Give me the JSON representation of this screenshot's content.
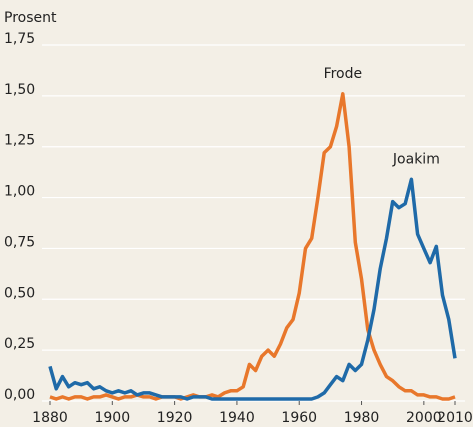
{
  "chart_data": {
    "type": "line",
    "y_label": "Prosent",
    "x": [
      1880,
      1882,
      1884,
      1886,
      1888,
      1890,
      1892,
      1894,
      1896,
      1898,
      1900,
      1902,
      1904,
      1906,
      1908,
      1910,
      1912,
      1914,
      1916,
      1918,
      1920,
      1922,
      1924,
      1926,
      1928,
      1930,
      1932,
      1934,
      1936,
      1938,
      1940,
      1942,
      1944,
      1946,
      1948,
      1950,
      1952,
      1954,
      1956,
      1958,
      1960,
      1962,
      1964,
      1966,
      1968,
      1970,
      1972,
      1974,
      1976,
      1978,
      1980,
      1982,
      1984,
      1986,
      1988,
      1990,
      1992,
      1994,
      1996,
      1998,
      2000,
      2002,
      2004,
      2006,
      2008,
      2010
    ],
    "series": [
      {
        "name": "Frode",
        "color": "#e8772b",
        "values": [
          0.02,
          0.01,
          0.02,
          0.01,
          0.02,
          0.02,
          0.01,
          0.02,
          0.02,
          0.03,
          0.02,
          0.01,
          0.02,
          0.02,
          0.03,
          0.02,
          0.02,
          0.01,
          0.02,
          0.02,
          0.02,
          0.01,
          0.02,
          0.03,
          0.02,
          0.02,
          0.03,
          0.02,
          0.04,
          0.05,
          0.05,
          0.07,
          0.18,
          0.15,
          0.22,
          0.25,
          0.22,
          0.28,
          0.36,
          0.4,
          0.53,
          0.75,
          0.8,
          1.0,
          1.22,
          1.25,
          1.35,
          1.51,
          1.25,
          0.78,
          0.6,
          0.35,
          0.25,
          0.18,
          0.12,
          0.1,
          0.07,
          0.05,
          0.05,
          0.03,
          0.03,
          0.02,
          0.02,
          0.01,
          0.01,
          0.02
        ]
      },
      {
        "name": "Joakim",
        "color": "#1f6aa8",
        "values": [
          0.17,
          0.06,
          0.12,
          0.07,
          0.09,
          0.08,
          0.09,
          0.06,
          0.07,
          0.05,
          0.04,
          0.05,
          0.04,
          0.05,
          0.03,
          0.04,
          0.04,
          0.03,
          0.02,
          0.02,
          0.02,
          0.02,
          0.01,
          0.02,
          0.02,
          0.02,
          0.01,
          0.01,
          0.01,
          0.01,
          0.01,
          0.01,
          0.01,
          0.01,
          0.01,
          0.01,
          0.01,
          0.01,
          0.01,
          0.01,
          0.01,
          0.01,
          0.01,
          0.02,
          0.04,
          0.08,
          0.12,
          0.1,
          0.18,
          0.15,
          0.18,
          0.3,
          0.45,
          0.65,
          0.8,
          0.98,
          0.95,
          0.97,
          1.09,
          0.82,
          0.75,
          0.68,
          0.76,
          0.52,
          0.4,
          0.21
        ]
      }
    ],
    "xlim": [
      1880,
      2010
    ],
    "xticks": [
      1880,
      1900,
      1920,
      1940,
      1960,
      1980,
      2000,
      2010
    ],
    "ylim": [
      0,
      1.75
    ],
    "yticks": [
      {
        "value": 0,
        "label": "0,00"
      },
      {
        "value": 0.25,
        "label": "0,25"
      },
      {
        "value": 0.5,
        "label": "0,50"
      },
      {
        "value": 0.75,
        "label": "0,75"
      },
      {
        "value": 1,
        "label": "1,00"
      },
      {
        "value": 1.25,
        "label": "1,25"
      },
      {
        "value": 1.5,
        "label": "1,50"
      },
      {
        "value": 1.75,
        "label": "1,75"
      }
    ],
    "grid": true
  }
}
